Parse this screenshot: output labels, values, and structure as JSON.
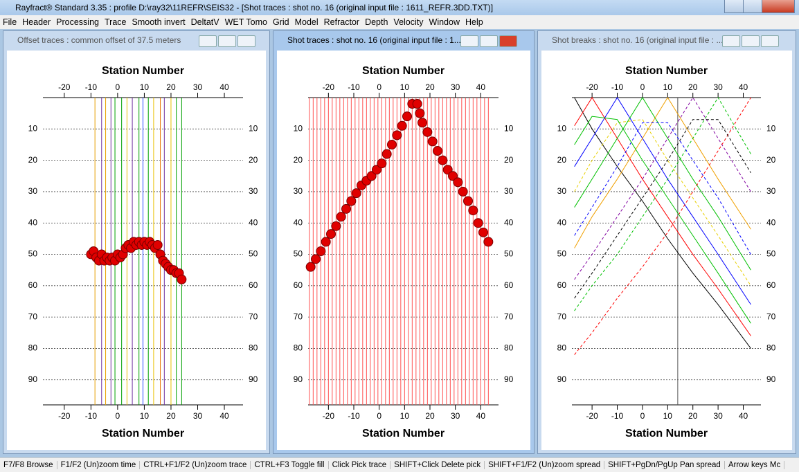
{
  "app_title": "Rayfract® Standard 3.35 : profile D:\\ray32\\11REFR\\SEIS32 - [Shot traces : shot no. 16 (original input file : 1611_REFR.3DD.TXT)]",
  "menu": [
    "File",
    "Header",
    "Processing",
    "Trace",
    "Smooth invert",
    "DeltatV",
    "WET Tomo",
    "Grid",
    "Model",
    "Refractor",
    "Depth",
    "Velocity",
    "Window",
    "Help"
  ],
  "windows": [
    {
      "title": "Offset traces : common offset of 37.5 meters"
    },
    {
      "title": "Shot traces : shot no. 16 (original input file : 1..."
    },
    {
      "title": "Shot breaks : shot no. 16 (original input file : ..."
    }
  ],
  "status_bar": [
    "F7/F8 Browse",
    "F1/F2 (Un)zoom time",
    "CTRL+F1/F2 (Un)zoom trace",
    "CTRL+F3 Toggle fill",
    "Click Pick trace",
    "SHIFT+Click Delete pick",
    "SHIFT+F1/F2 (Un)zoom spread",
    "SHIFT+PgDn/PgUp Pan spread",
    "Arrow keys Mc"
  ],
  "chart_data": [
    {
      "type": "scatter",
      "xlabel": "Station Number",
      "xlim": [
        -28,
        47
      ],
      "ylim": [
        0,
        98
      ],
      "xticks": [
        -20,
        -10,
        0,
        10,
        20,
        30,
        40
      ],
      "yticks": [
        10,
        20,
        30,
        40,
        50,
        60,
        70,
        80,
        90
      ],
      "grid": true,
      "traces": [
        -8.5,
        -6,
        -4.5,
        -2.5,
        -1,
        1.5,
        3.5,
        5.5,
        8,
        9.5,
        11.5,
        13.5,
        16,
        17.5,
        20,
        22,
        24
      ],
      "trace_colors": [
        "#e8a000",
        "#7030a0",
        "#e8a000",
        "#7030a0",
        "#00a000",
        "#00a000",
        "#e8c000",
        "#7030a0",
        "#00a000",
        "#2040ff",
        "#00a000",
        "#e8c000",
        "#e87000",
        "#7030a0",
        "#e8c000",
        "#00a000",
        "#00a000"
      ],
      "pick_color": "#e00000",
      "x": [
        -10,
        -9,
        -8,
        -7,
        -6,
        -5,
        -4,
        -3,
        -2,
        -1,
        0,
        1,
        2,
        3,
        4,
        5,
        6,
        7,
        8,
        9,
        10,
        11,
        12,
        13,
        14,
        15,
        16,
        17,
        18,
        19,
        20,
        21,
        22,
        23,
        24
      ],
      "values": [
        50,
        49,
        51,
        52,
        50,
        52,
        51,
        52,
        51,
        52,
        50,
        51,
        50,
        48,
        47,
        48,
        46,
        47,
        46,
        47,
        46,
        47,
        46,
        47,
        48,
        47,
        50,
        52,
        53,
        54,
        55,
        55,
        56,
        56,
        58
      ]
    },
    {
      "type": "scatter",
      "xlabel": "Station Number",
      "xlim": [
        -28,
        47
      ],
      "ylim": [
        0,
        98
      ],
      "xticks": [
        -20,
        -10,
        0,
        10,
        20,
        30,
        40
      ],
      "yticks": [
        10,
        20,
        30,
        40,
        50,
        60,
        70,
        80,
        90
      ],
      "grid": true,
      "traces": [
        -27.5,
        -26,
        -24.5,
        -23,
        -21.5,
        -20,
        -18.5,
        -17,
        -15.5,
        -14,
        -12.5,
        -11,
        -9.5,
        -8,
        -6.5,
        -5,
        -3.5,
        -2,
        -0.5,
        1,
        2.5,
        4,
        5.5,
        7,
        8.5,
        10,
        11.5,
        13,
        14.5,
        16,
        17.5,
        19,
        20.5,
        22,
        23.5,
        25,
        26.5,
        28,
        29.5,
        31,
        32.5,
        34,
        35.5,
        37,
        38.5,
        40,
        41.5,
        43
      ],
      "trace_color": "#ff5050",
      "pick_color": "#e00000",
      "x": [
        -27,
        -25,
        -23,
        -21,
        -19,
        -17,
        -15,
        -13,
        -11,
        -9,
        -7,
        -5,
        -3,
        -1,
        1,
        3,
        5,
        7,
        9,
        11,
        13,
        15,
        16,
        17,
        19,
        21,
        23,
        25,
        27,
        29,
        31,
        33,
        35,
        37,
        39,
        41,
        43
      ],
      "values": [
        54,
        51.5,
        49,
        46,
        43.5,
        41,
        38,
        35.5,
        33,
        30.5,
        28,
        26.5,
        25,
        23,
        21,
        18,
        15,
        12,
        9,
        6,
        2,
        2,
        5,
        8,
        11,
        14,
        17,
        20,
        23,
        25,
        27,
        30,
        33,
        36,
        40,
        43,
        46
      ]
    },
    {
      "type": "line",
      "xlabel": "Station Number",
      "xlim": [
        -28,
        47
      ],
      "ylim": [
        0,
        98
      ],
      "xticks": [
        -20,
        -10,
        0,
        10,
        20,
        30,
        40
      ],
      "yticks": [
        10,
        20,
        30,
        40,
        50,
        60,
        70,
        80,
        90
      ],
      "grid": true,
      "shot_station": 14,
      "x": [
        -27,
        -20,
        -10,
        0,
        10,
        20,
        30,
        43
      ],
      "series": [
        {
          "color": "#000000",
          "dashed": false,
          "values": [
            0,
            10,
            22,
            33,
            45,
            56,
            66,
            80
          ]
        },
        {
          "color": "#ff0000",
          "dashed": false,
          "values": [
            9,
            0,
            13,
            26,
            38,
            50,
            61,
            76
          ]
        },
        {
          "color": "#0000ff",
          "dashed": false,
          "values": [
            22,
            13,
            0,
            13,
            26,
            38,
            50,
            66
          ]
        },
        {
          "color": "#00c000",
          "dashed": false,
          "values": [
            35,
            26,
            13,
            0,
            13,
            26,
            38,
            55
          ]
        },
        {
          "color": "#f0a000",
          "dashed": false,
          "values": [
            48,
            38,
            26,
            13,
            0,
            13,
            26,
            42
          ]
        },
        {
          "color": "#8000a0",
          "dashed": true,
          "values": [
            58,
            50,
            38,
            26,
            13,
            0,
            13,
            30
          ]
        },
        {
          "color": "#00c000",
          "dashed": true,
          "values": [
            68,
            60,
            50,
            38,
            26,
            13,
            0,
            18
          ]
        },
        {
          "color": "#ff0000",
          "dashed": true,
          "values": [
            82,
            75,
            64,
            54,
            43,
            30,
            17,
            0
          ]
        },
        {
          "color": "#0000ff",
          "dashed": true,
          "values": [
            44,
            35,
            22,
            8,
            8,
            20,
            32,
            50
          ]
        },
        {
          "color": "#e8d000",
          "dashed": true,
          "values": [
            30,
            20,
            8,
            7,
            20,
            32,
            44,
            60
          ]
        },
        {
          "color": "#000000",
          "dashed": true,
          "values": [
            64,
            56,
            44,
            32,
            20,
            7,
            7,
            24
          ]
        },
        {
          "color": "#00c000",
          "dashed": false,
          "values": [
            15,
            6,
            7,
            20,
            32,
            44,
            56,
            72
          ]
        }
      ]
    }
  ]
}
